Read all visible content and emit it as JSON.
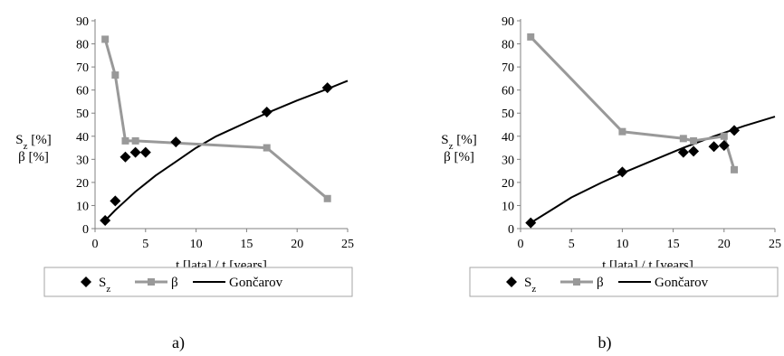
{
  "chart_data": [
    {
      "type": "line",
      "panel_label": "a)",
      "xlabel": "t [lata] / t [years]",
      "ylabel_lines": [
        "Sz [%]",
        "β [%]"
      ],
      "xlim": [
        0,
        25
      ],
      "ylim": [
        0,
        90
      ],
      "xticks": [
        0,
        5,
        10,
        15,
        20,
        25
      ],
      "yticks": [
        0,
        10,
        20,
        30,
        40,
        50,
        60,
        70,
        80,
        90
      ],
      "grid": false,
      "legend_position": "bottom",
      "legend": [
        "Sz",
        "β",
        "Gončarov"
      ],
      "series": [
        {
          "name": "Sz",
          "style": "markers",
          "marker": "diamond",
          "color": "#000000",
          "x": [
            1,
            2,
            3,
            4,
            5,
            8,
            17,
            23
          ],
          "y": [
            3.5,
            12,
            31,
            33,
            33,
            37.5,
            50.5,
            61
          ]
        },
        {
          "name": "β",
          "style": "line+markers",
          "marker": "square",
          "color": "#999999",
          "x": [
            1,
            2,
            3,
            4,
            17,
            23
          ],
          "y": [
            82,
            66.5,
            38,
            38,
            35,
            13
          ]
        },
        {
          "name": "Gončarov",
          "style": "line",
          "color": "#000000",
          "x": [
            1,
            2,
            3,
            4,
            5,
            6,
            8,
            10,
            12,
            15,
            17,
            20,
            23,
            25
          ],
          "y": [
            3.5,
            8,
            12,
            16,
            19.5,
            23,
            29,
            35,
            40,
            46,
            50,
            55.5,
            60.5,
            64
          ]
        }
      ]
    },
    {
      "type": "line",
      "panel_label": "b)",
      "xlabel": "t [lata] / t [years]",
      "ylabel_lines": [
        "Sz [%]",
        "β [%]"
      ],
      "xlim": [
        0,
        25
      ],
      "ylim": [
        0,
        90
      ],
      "xticks": [
        0,
        5,
        10,
        15,
        20,
        25
      ],
      "yticks": [
        0,
        10,
        20,
        30,
        40,
        50,
        60,
        70,
        80,
        90
      ],
      "grid": false,
      "legend_position": "bottom",
      "legend": [
        "Sz",
        "β",
        "Gončarov"
      ],
      "series": [
        {
          "name": "Sz",
          "style": "markers",
          "marker": "diamond",
          "color": "#000000",
          "x": [
            1,
            10,
            16,
            17,
            19,
            20,
            21
          ],
          "y": [
            2.5,
            24.5,
            33,
            33.5,
            35.5,
            36,
            42.5
          ]
        },
        {
          "name": "β",
          "style": "line+markers",
          "marker": "square",
          "color": "#999999",
          "x": [
            1,
            10,
            16,
            17,
            20,
            21
          ],
          "y": [
            83,
            42,
            39,
            38,
            40,
            25.5
          ]
        },
        {
          "name": "Gončarov",
          "style": "line",
          "color": "#000000",
          "x": [
            1,
            3,
            5,
            8,
            10,
            13,
            16,
            19,
            22,
            25
          ],
          "y": [
            2.5,
            8,
            13.5,
            20,
            24,
            29.5,
            35,
            40,
            44.5,
            48.5
          ]
        }
      ]
    }
  ]
}
